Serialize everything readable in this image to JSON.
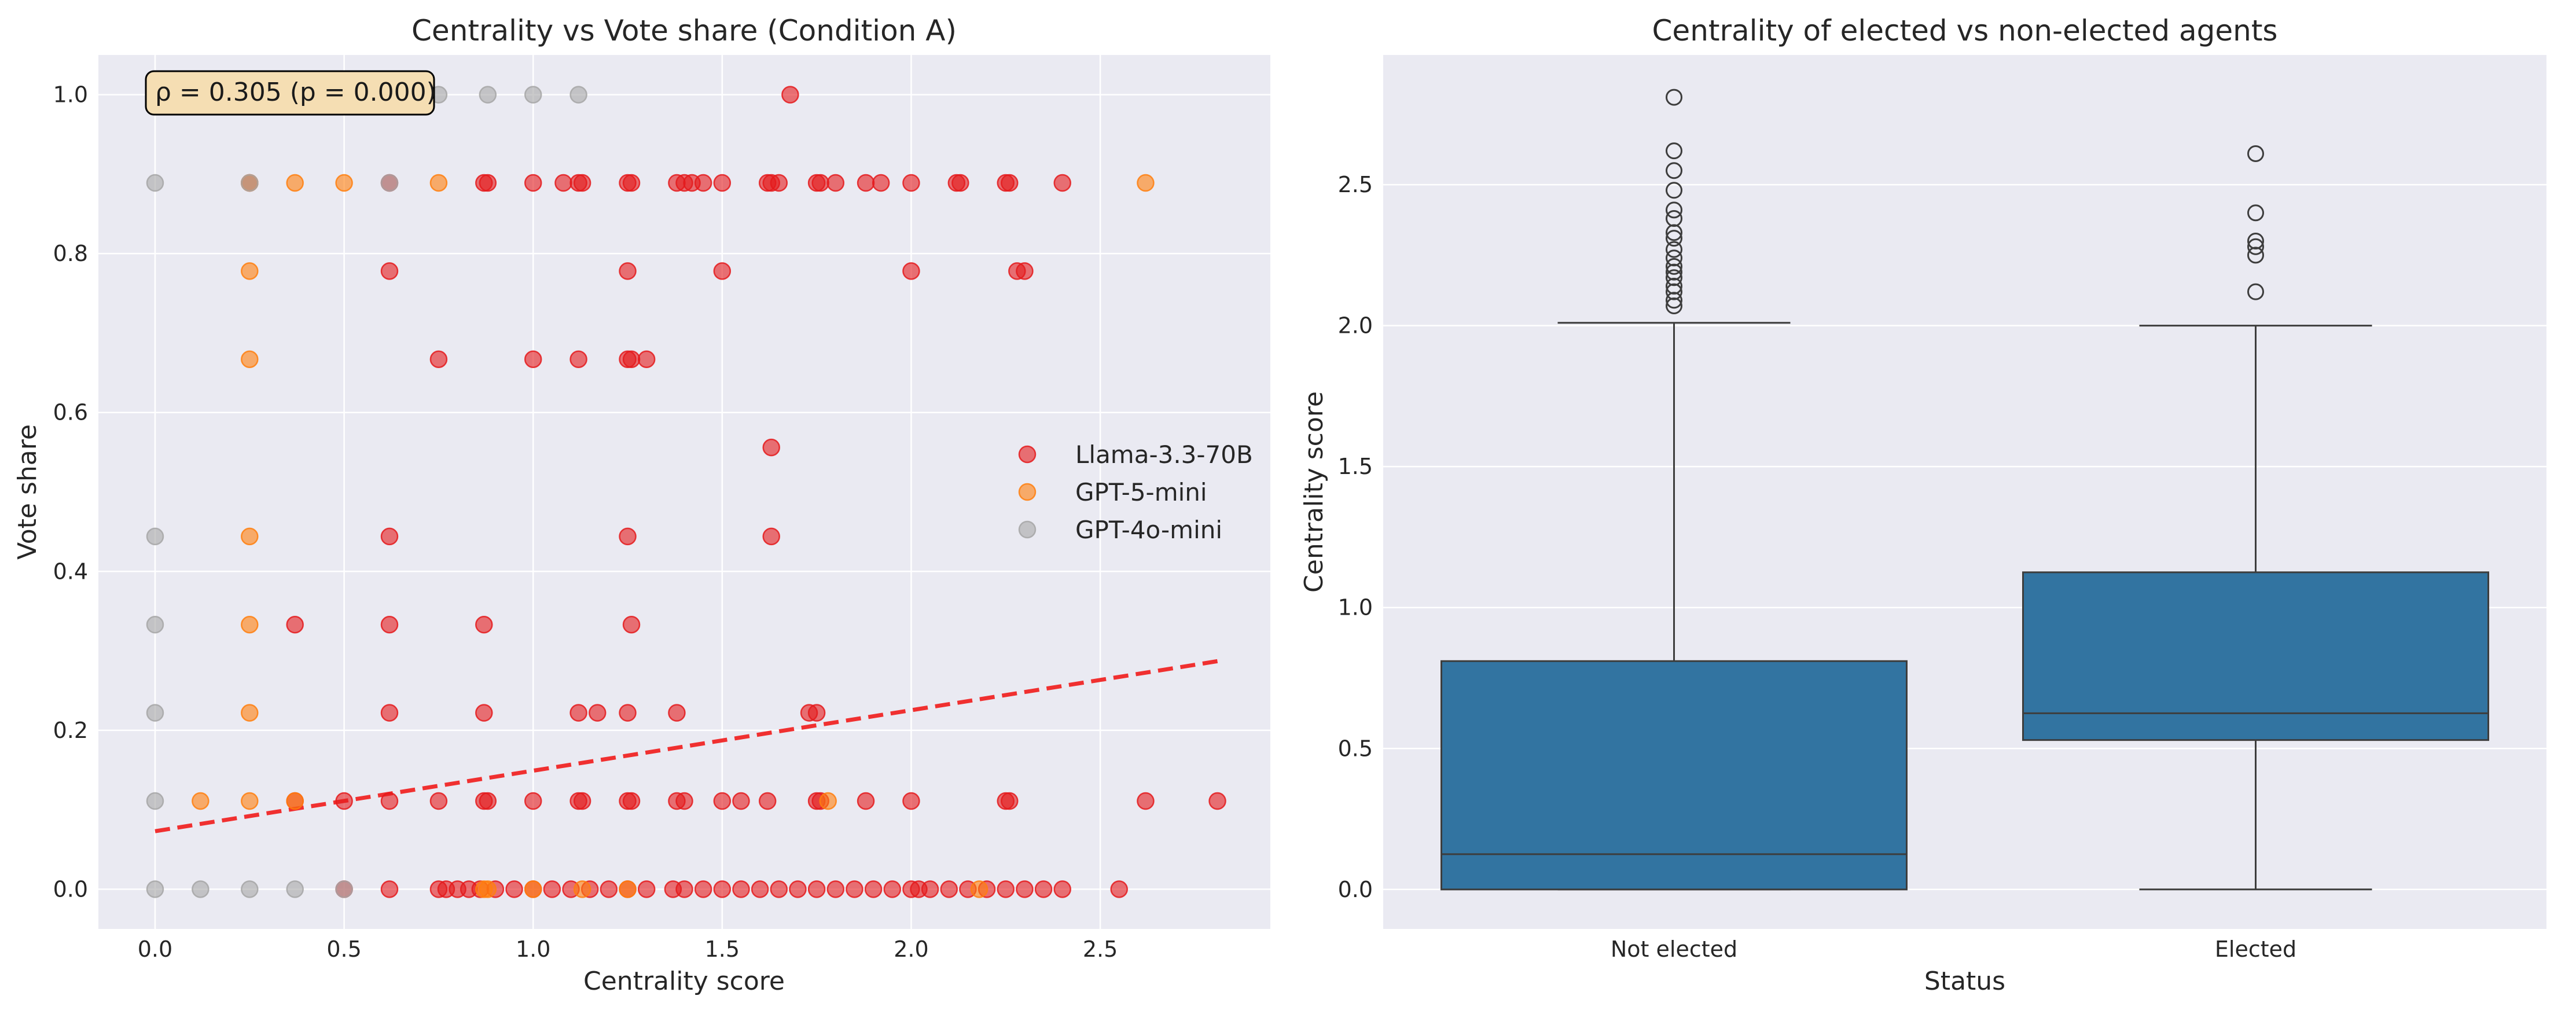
{
  "chart_data": [
    {
      "type": "scatter",
      "title": "Centrality vs Vote share (Condition A)",
      "xlabel": "Centrality score",
      "ylabel": "Vote share",
      "xlim": [
        -0.15,
        2.95
      ],
      "ylim": [
        -0.05,
        1.05
      ],
      "xticks": [
        "0.0",
        "0.5",
        "1.0",
        "1.5",
        "2.0",
        "2.5"
      ],
      "yticks": [
        "0.0",
        "0.2",
        "0.4",
        "0.6",
        "0.8",
        "1.0"
      ],
      "grid": true,
      "legend_position": "center-right",
      "annotation": "ρ = 0.305 (p = 0.000)",
      "trend_line": {
        "x": [
          0.0,
          2.81
        ],
        "y": [
          0.073,
          0.287
        ],
        "color": "#f03030",
        "style": "dashed"
      },
      "series": [
        {
          "name": "Llama-3.3-70B",
          "color": "#e41a1c",
          "points": [
            [
              1.68,
              1.0
            ],
            [
              0.25,
              0.889
            ],
            [
              0.62,
              0.889
            ],
            [
              0.87,
              0.889
            ],
            [
              0.88,
              0.889
            ],
            [
              1.0,
              0.889
            ],
            [
              1.08,
              0.889
            ],
            [
              1.12,
              0.889
            ],
            [
              1.13,
              0.889
            ],
            [
              1.25,
              0.889
            ],
            [
              1.26,
              0.889
            ],
            [
              1.38,
              0.889
            ],
            [
              1.4,
              0.889
            ],
            [
              1.42,
              0.889
            ],
            [
              1.45,
              0.889
            ],
            [
              1.5,
              0.889
            ],
            [
              1.62,
              0.889
            ],
            [
              1.63,
              0.889
            ],
            [
              1.65,
              0.889
            ],
            [
              1.75,
              0.889
            ],
            [
              1.76,
              0.889
            ],
            [
              1.8,
              0.889
            ],
            [
              1.88,
              0.889
            ],
            [
              1.92,
              0.889
            ],
            [
              2.0,
              0.889
            ],
            [
              2.12,
              0.889
            ],
            [
              2.13,
              0.889
            ],
            [
              2.25,
              0.889
            ],
            [
              2.26,
              0.889
            ],
            [
              2.4,
              0.889
            ],
            [
              0.62,
              0.778
            ],
            [
              1.25,
              0.778
            ],
            [
              1.5,
              0.778
            ],
            [
              2.0,
              0.778
            ],
            [
              2.28,
              0.778
            ],
            [
              2.3,
              0.778
            ],
            [
              0.75,
              0.667
            ],
            [
              1.0,
              0.667
            ],
            [
              1.12,
              0.667
            ],
            [
              1.25,
              0.667
            ],
            [
              1.26,
              0.667
            ],
            [
              1.3,
              0.667
            ],
            [
              1.63,
              0.556
            ],
            [
              0.62,
              0.444
            ],
            [
              1.25,
              0.444
            ],
            [
              1.63,
              0.444
            ],
            [
              0.37,
              0.333
            ],
            [
              0.62,
              0.333
            ],
            [
              0.87,
              0.333
            ],
            [
              1.26,
              0.333
            ],
            [
              0.62,
              0.222
            ],
            [
              0.87,
              0.222
            ],
            [
              1.12,
              0.222
            ],
            [
              1.17,
              0.222
            ],
            [
              1.25,
              0.222
            ],
            [
              1.38,
              0.222
            ],
            [
              1.73,
              0.222
            ],
            [
              1.75,
              0.222
            ],
            [
              0.37,
              0.111
            ],
            [
              0.5,
              0.111
            ],
            [
              0.62,
              0.111
            ],
            [
              0.75,
              0.111
            ],
            [
              0.87,
              0.111
            ],
            [
              0.88,
              0.111
            ],
            [
              1.0,
              0.111
            ],
            [
              1.12,
              0.111
            ],
            [
              1.13,
              0.111
            ],
            [
              1.25,
              0.111
            ],
            [
              1.26,
              0.111
            ],
            [
              1.38,
              0.111
            ],
            [
              1.4,
              0.111
            ],
            [
              1.5,
              0.111
            ],
            [
              1.55,
              0.111
            ],
            [
              1.62,
              0.111
            ],
            [
              1.75,
              0.111
            ],
            [
              1.76,
              0.111
            ],
            [
              1.88,
              0.111
            ],
            [
              2.0,
              0.111
            ],
            [
              2.25,
              0.111
            ],
            [
              2.26,
              0.111
            ],
            [
              2.62,
              0.111
            ],
            [
              2.81,
              0.111
            ],
            [
              0.5,
              0.0
            ],
            [
              0.62,
              0.0
            ],
            [
              0.75,
              0.0
            ],
            [
              0.77,
              0.0
            ],
            [
              0.8,
              0.0
            ],
            [
              0.83,
              0.0
            ],
            [
              0.86,
              0.0
            ],
            [
              0.9,
              0.0
            ],
            [
              0.95,
              0.0
            ],
            [
              1.0,
              0.0
            ],
            [
              1.05,
              0.0
            ],
            [
              1.1,
              0.0
            ],
            [
              1.15,
              0.0
            ],
            [
              1.2,
              0.0
            ],
            [
              1.25,
              0.0
            ],
            [
              1.3,
              0.0
            ],
            [
              1.37,
              0.0
            ],
            [
              1.4,
              0.0
            ],
            [
              1.45,
              0.0
            ],
            [
              1.5,
              0.0
            ],
            [
              1.55,
              0.0
            ],
            [
              1.6,
              0.0
            ],
            [
              1.65,
              0.0
            ],
            [
              1.7,
              0.0
            ],
            [
              1.75,
              0.0
            ],
            [
              1.8,
              0.0
            ],
            [
              1.85,
              0.0
            ],
            [
              1.9,
              0.0
            ],
            [
              1.95,
              0.0
            ],
            [
              2.0,
              0.0
            ],
            [
              2.02,
              0.0
            ],
            [
              2.05,
              0.0
            ],
            [
              2.1,
              0.0
            ],
            [
              2.15,
              0.0
            ],
            [
              2.2,
              0.0
            ],
            [
              2.25,
              0.0
            ],
            [
              2.3,
              0.0
            ],
            [
              2.35,
              0.0
            ],
            [
              2.4,
              0.0
            ],
            [
              2.55,
              0.0
            ]
          ]
        },
        {
          "name": "GPT-5-mini",
          "color": "#ff7f0e",
          "points": [
            [
              0.25,
              0.889
            ],
            [
              0.37,
              0.889
            ],
            [
              0.5,
              0.889
            ],
            [
              0.75,
              0.889
            ],
            [
              2.62,
              0.889
            ],
            [
              0.25,
              0.778
            ],
            [
              0.25,
              0.667
            ],
            [
              0.25,
              0.444
            ],
            [
              0.25,
              0.333
            ],
            [
              0.25,
              0.222
            ],
            [
              0.12,
              0.111
            ],
            [
              0.25,
              0.111
            ],
            [
              0.37,
              0.111
            ],
            [
              1.78,
              0.111
            ],
            [
              0.87,
              0.0
            ],
            [
              0.88,
              0.0
            ],
            [
              1.0,
              0.0
            ],
            [
              1.13,
              0.0
            ],
            [
              1.25,
              0.0
            ],
            [
              2.18,
              0.0
            ]
          ]
        },
        {
          "name": "GPT-4o-mini",
          "color": "#a6a6a6",
          "points": [
            [
              0.25,
              1.0
            ],
            [
              0.75,
              1.0
            ],
            [
              0.88,
              1.0
            ],
            [
              1.0,
              1.0
            ],
            [
              1.12,
              1.0
            ],
            [
              0.0,
              0.889
            ],
            [
              0.25,
              0.889
            ],
            [
              0.62,
              0.889
            ],
            [
              0.0,
              0.444
            ],
            [
              0.0,
              0.333
            ],
            [
              0.0,
              0.222
            ],
            [
              0.0,
              0.111
            ],
            [
              0.0,
              0.0
            ],
            [
              0.12,
              0.0
            ],
            [
              0.25,
              0.0
            ],
            [
              0.37,
              0.0
            ],
            [
              0.5,
              0.0
            ]
          ]
        }
      ]
    },
    {
      "type": "box",
      "title": "Centrality of elected vs non-elected agents",
      "xlabel": "Status",
      "ylabel": "Centrality score",
      "categories": [
        "Not elected",
        "Elected"
      ],
      "ylim": [
        -0.14,
        2.96
      ],
      "yticks": [
        "0.0",
        "0.5",
        "1.0",
        "1.5",
        "2.0",
        "2.5"
      ],
      "grid": true,
      "color": "#3274a1",
      "boxes": [
        {
          "category": "Not elected",
          "q1": 0.0,
          "median": 0.125,
          "q3": 0.81,
          "whisker_low": 0.0,
          "whisker_high": 2.01,
          "outliers": [
            2.07,
            2.09,
            2.12,
            2.14,
            2.17,
            2.19,
            2.21,
            2.24,
            2.27,
            2.31,
            2.33,
            2.38,
            2.41,
            2.48,
            2.55,
            2.62,
            2.81
          ]
        },
        {
          "category": "Elected",
          "q1": 0.53,
          "median": 0.625,
          "q3": 1.125,
          "whisker_low": 0.0,
          "whisker_high": 2.0,
          "outliers": [
            2.12,
            2.25,
            2.28,
            2.3,
            2.4,
            2.61
          ]
        }
      ]
    }
  ]
}
